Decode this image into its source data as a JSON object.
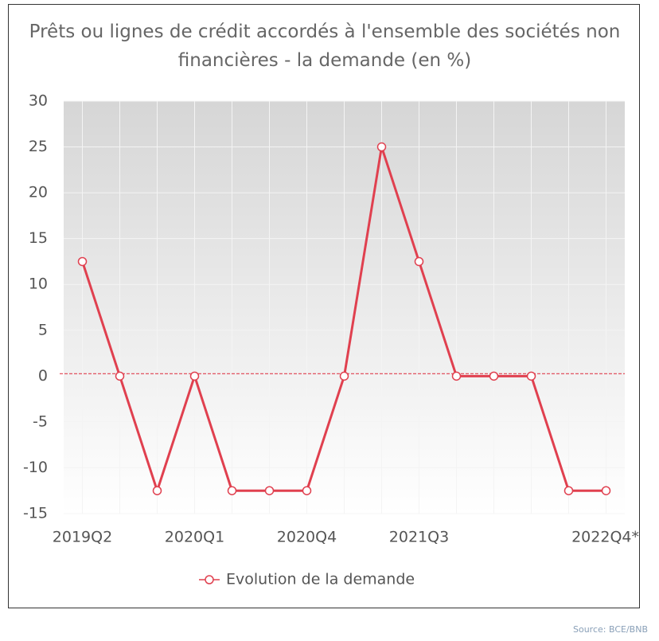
{
  "chart_data": {
    "type": "line",
    "title": "Prêts ou lignes de crédit accordés à l'ensemble des sociétés non financières - la demande (en %)",
    "categories": [
      "2019Q2",
      null,
      null,
      "2020Q1",
      null,
      null,
      "2020Q4",
      null,
      null,
      "2021Q3",
      null,
      null,
      null,
      null,
      "2022Q4*"
    ],
    "series": [
      {
        "name": "Evolution de la demande",
        "color": "#e0404f",
        "values": [
          12.5,
          0,
          -12.5,
          0,
          -12.5,
          -12.5,
          -12.5,
          0,
          25,
          12.5,
          0,
          0,
          0,
          -12.5,
          -12.5
        ]
      }
    ],
    "ylim": [
      -15,
      30
    ],
    "yticks": [
      -15,
      -10,
      -5,
      0,
      5,
      10,
      15,
      20,
      25,
      30
    ],
    "grid": true,
    "source": "Source: BCE/BNB"
  }
}
